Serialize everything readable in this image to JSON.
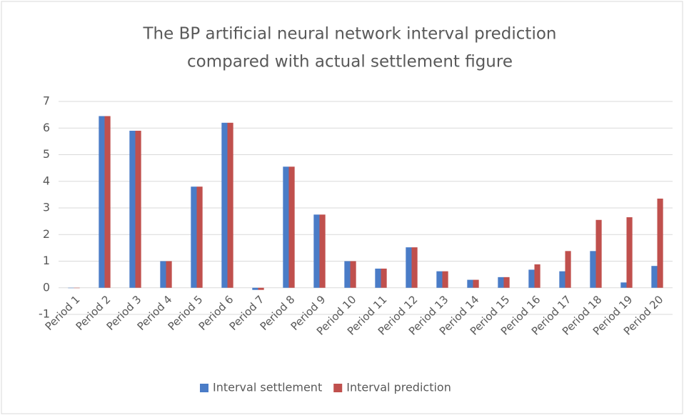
{
  "chart_data": {
    "type": "bar",
    "title": [
      "The BP artificial neural network interval prediction",
      "compared with actual settlement figure"
    ],
    "categories": [
      "Period 1",
      "Period 2",
      "Period 3",
      "Period 4",
      "Period 5",
      "Period 6",
      "Period 7",
      "Period 8",
      "Period 9",
      "Period 10",
      "Period 11",
      "Period 12",
      "Period 13",
      "Period 14",
      "Period 15",
      "Period 16",
      "Period 17",
      "Period 18",
      "Period 19",
      "Period 20"
    ],
    "series": [
      {
        "name": "Interval settlement",
        "color": "#4a7cc7",
        "values": [
          0,
          6.45,
          5.9,
          1,
          3.8,
          6.2,
          -0.08,
          4.55,
          2.75,
          1,
          0.72,
          1.52,
          0.62,
          0.3,
          0.4,
          0.68,
          0.62,
          1.38,
          0.2,
          0.82
        ]
      },
      {
        "name": "Interval prediction",
        "color": "#c0504d",
        "values": [
          0,
          6.45,
          5.9,
          1,
          3.8,
          6.2,
          -0.08,
          4.55,
          2.75,
          1,
          0.72,
          1.52,
          0.62,
          0.3,
          0.4,
          0.88,
          1.38,
          2.55,
          2.65,
          3.35
        ]
      }
    ],
    "ylim": [
      -1,
      7
    ],
    "yticks": [
      -1,
      0,
      1,
      2,
      3,
      4,
      5,
      6,
      7
    ],
    "grid": true,
    "legend": "bottom"
  }
}
